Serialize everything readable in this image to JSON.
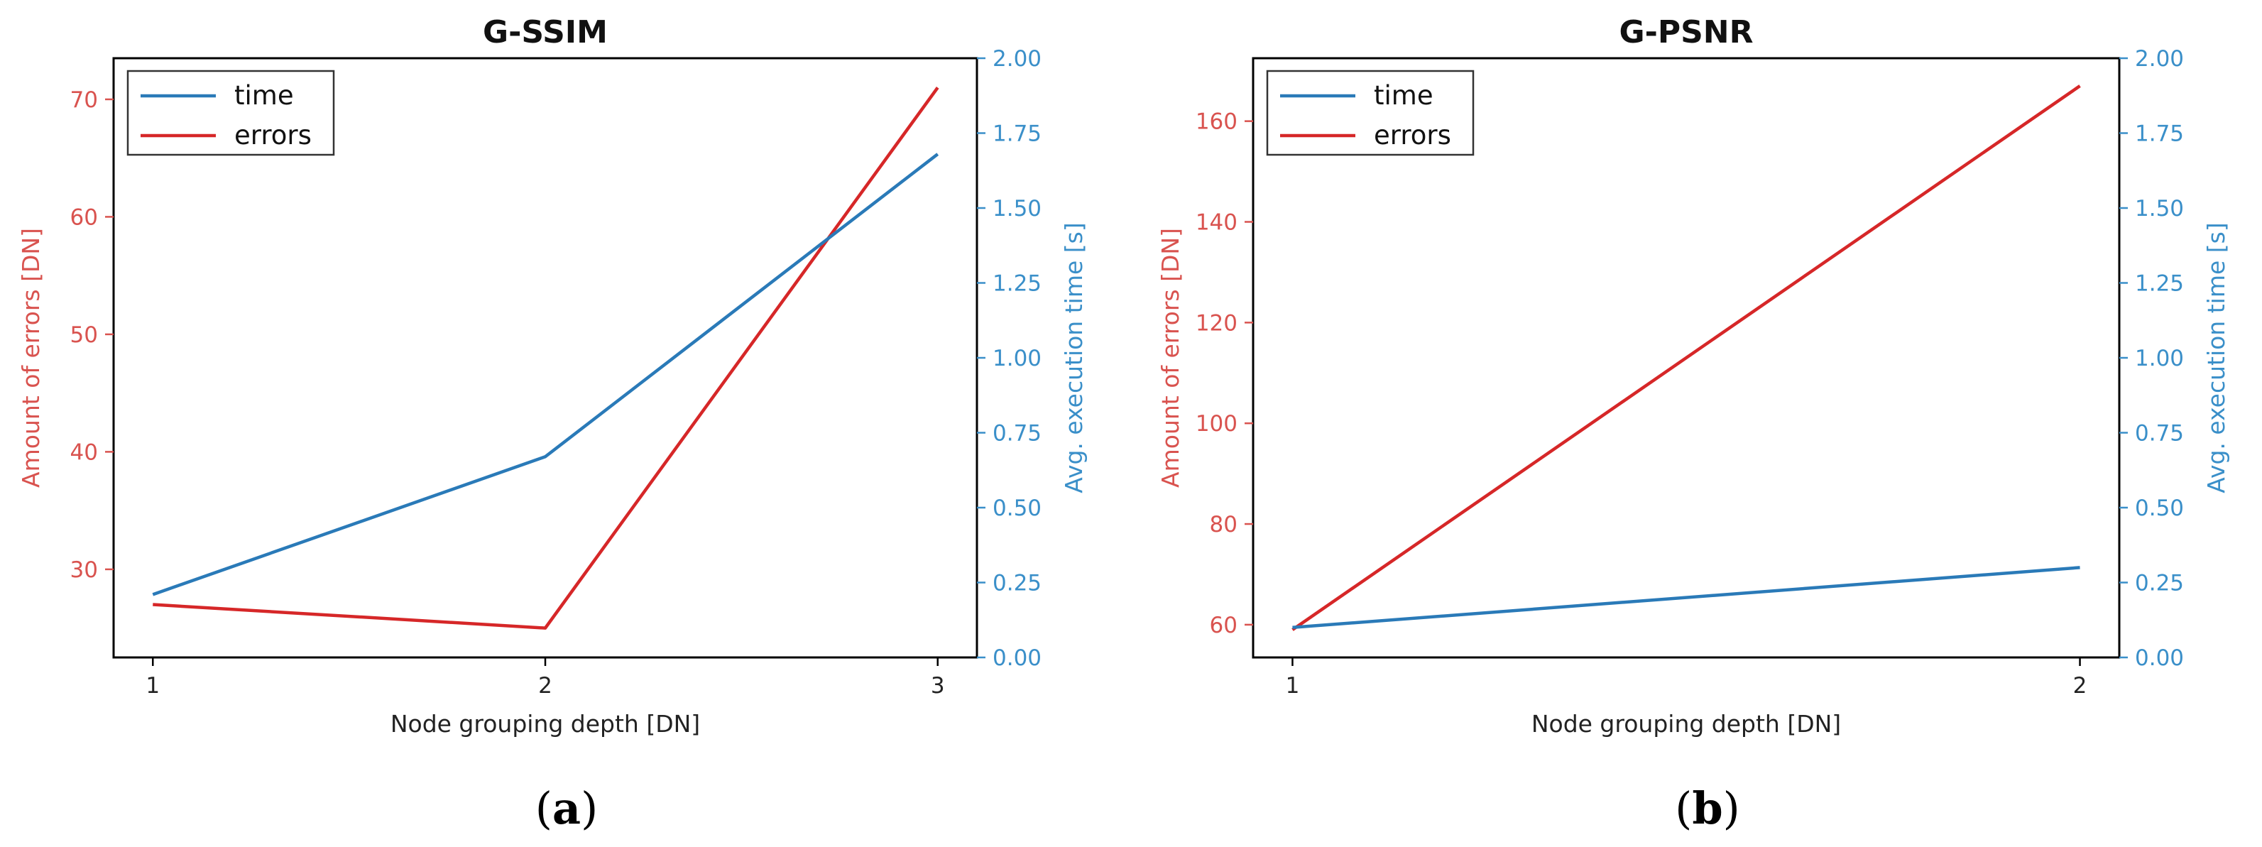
{
  "colors": {
    "errors": "#d62728",
    "time": "#2a7ab8",
    "errors_axis": "#d9534f",
    "time_axis": "#3a8fc9",
    "frame": "#000000"
  },
  "chart_data": [
    {
      "type": "line",
      "panel_label": "a",
      "title": "G-SSIM",
      "xlabel": "Node grouping depth [DN]",
      "ylabel_left": "Amount of errors [DN]",
      "ylabel_right": "Avg. execution time [s]",
      "x": [
        1,
        2,
        3
      ],
      "xlim": [
        0.9,
        3.1
      ],
      "xticks": [
        "1",
        "2",
        "3"
      ],
      "ylim_left": [
        22.5,
        73.5
      ],
      "yticks_left": [
        30,
        40,
        50,
        60,
        70
      ],
      "ylim_right": [
        0.0,
        2.0
      ],
      "yticks_right": [
        "0.00",
        "0.25",
        "0.50",
        "0.75",
        "1.00",
        "1.25",
        "1.50",
        "1.75",
        "2.00"
      ],
      "legend": {
        "placement": "top-left",
        "entries": [
          "time",
          "errors"
        ]
      },
      "series": [
        {
          "name": "errors",
          "axis": "left",
          "values": [
            27,
            25,
            71
          ]
        },
        {
          "name": "time",
          "axis": "right",
          "values": [
            0.21,
            0.67,
            1.68
          ]
        }
      ],
      "grid": false
    },
    {
      "type": "line",
      "panel_label": "b",
      "title": "G-PSNR",
      "xlabel": "Node grouping depth [DN]",
      "ylabel_left": "Amount of errors [DN]",
      "ylabel_right": "Avg. execution time [s]",
      "x": [
        1,
        2
      ],
      "xlim": [
        0.95,
        2.05
      ],
      "xticks": [
        "1",
        "2"
      ],
      "ylim_left": [
        53.5,
        172.5
      ],
      "yticks_left": [
        60,
        80,
        100,
        120,
        140,
        160
      ],
      "ylim_right": [
        0.0,
        2.0
      ],
      "yticks_right": [
        "0.00",
        "0.25",
        "0.50",
        "0.75",
        "1.00",
        "1.25",
        "1.50",
        "1.75",
        "2.00"
      ],
      "legend": {
        "placement": "top-left",
        "entries": [
          "time",
          "errors"
        ]
      },
      "series": [
        {
          "name": "errors",
          "axis": "left",
          "values": [
            59,
            167
          ]
        },
        {
          "name": "time",
          "axis": "right",
          "values": [
            0.1,
            0.3
          ]
        }
      ],
      "grid": false
    }
  ]
}
